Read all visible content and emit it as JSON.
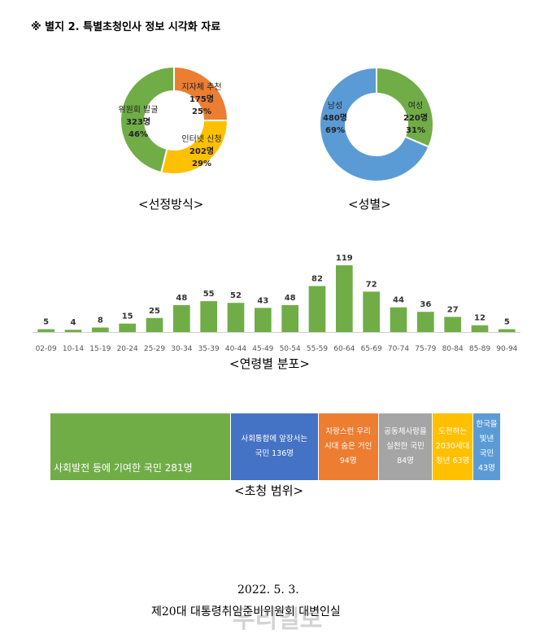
{
  "header": {
    "title": "※ 별지 2. 특별초청인사 정보 시각화 자료"
  },
  "chart_data": [
    {
      "type": "pie",
      "variant": "donut",
      "title": "<선정방식>",
      "slices": [
        {
          "label": "지자체 추천",
          "count": "175명",
          "percent": "25%",
          "value": 175,
          "color": "#ED7D31"
        },
        {
          "label": "인터넷 신청",
          "count": "202명",
          "percent": "29%",
          "value": 202,
          "color": "#FFC000"
        },
        {
          "label": "위원회 발굴",
          "count": "323명",
          "percent": "46%",
          "value": 323,
          "color": "#70AD47"
        }
      ]
    },
    {
      "type": "pie",
      "variant": "donut",
      "title": "<성별>",
      "slices": [
        {
          "label": "여성",
          "count": "220명",
          "percent": "31%",
          "value": 220,
          "color": "#70AD47"
        },
        {
          "label": "남성",
          "count": "480명",
          "percent": "69%",
          "value": 480,
          "color": "#5B9BD5"
        }
      ]
    },
    {
      "type": "bar",
      "title": "<연령별 분포>",
      "categories": [
        "02-09",
        "10-14",
        "15-19",
        "20-24",
        "25-29",
        "30-34",
        "35-39",
        "40-44",
        "45-49",
        "50-54",
        "55-59",
        "60-64",
        "65-69",
        "70-74",
        "75-79",
        "80-84",
        "85-89",
        "90-94"
      ],
      "values": [
        5,
        4,
        8,
        15,
        25,
        48,
        55,
        52,
        43,
        48,
        82,
        119,
        72,
        44,
        36,
        27,
        12,
        5
      ],
      "ylim": [
        0,
        119
      ],
      "grid": false,
      "color": "#70AD47"
    },
    {
      "type": "bar",
      "variant": "stacked-100",
      "title": "<초청 범위>",
      "segments": [
        {
          "lines": [
            "사회발전 등에 기여한 국민 281명"
          ],
          "value": 281,
          "color": "#70AD47"
        },
        {
          "lines": [
            "사회통합에 앞장서는",
            "국민 136명"
          ],
          "value": 136,
          "color": "#4472C4"
        },
        {
          "lines": [
            "자랑스런 우리",
            "시대 숨은 거인",
            "94명"
          ],
          "value": 94,
          "color": "#ED7D31"
        },
        {
          "lines": [
            "공동체사랑을",
            "실천한 국민",
            "84명"
          ],
          "value": 84,
          "color": "#A5A5A5"
        },
        {
          "lines": [
            "도전하는",
            "2030세대",
            "청년 63명"
          ],
          "value": 63,
          "color": "#FFC000"
        },
        {
          "lines": [
            "한국을",
            "빛낸",
            "국민",
            "43명"
          ],
          "value": 43,
          "color": "#5B9BD5"
        }
      ]
    }
  ],
  "footer": {
    "date": "2022. 5. 3.",
    "org": "제20대 대통령취임준비위원회 대변인실"
  },
  "watermark": "우리일보"
}
